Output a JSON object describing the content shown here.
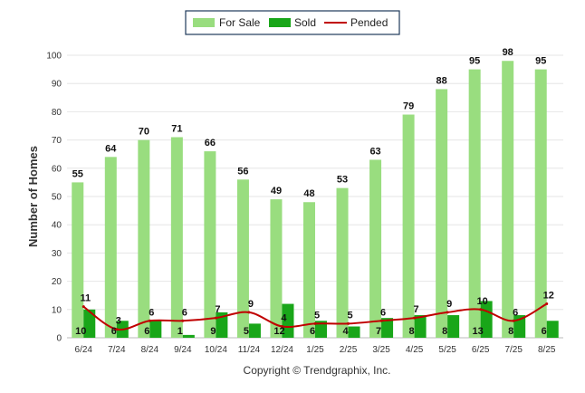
{
  "chart_data": {
    "type": "bar",
    "categories": [
      "6/24",
      "7/24",
      "8/24",
      "9/24",
      "10/24",
      "11/24",
      "12/24",
      "1/25",
      "2/25",
      "3/25",
      "4/25",
      "5/25",
      "6/25",
      "7/25",
      "8/25"
    ],
    "series": [
      {
        "name": "For Sale",
        "kind": "bar",
        "color": "#99dd7f",
        "values": [
          55,
          64,
          70,
          71,
          66,
          56,
          49,
          48,
          53,
          63,
          79,
          88,
          95,
          98,
          95
        ]
      },
      {
        "name": "Sold",
        "kind": "bar",
        "color": "#19a619",
        "values": [
          10,
          6,
          6,
          1,
          9,
          5,
          12,
          6,
          4,
          7,
          8,
          8,
          13,
          8,
          6
        ]
      },
      {
        "name": "Pended",
        "kind": "line",
        "color": "#c00000",
        "values": [
          11,
          3,
          6,
          6,
          7,
          9,
          4,
          5,
          5,
          6,
          7,
          9,
          10,
          6,
          12
        ]
      }
    ],
    "ylabel": "Number of Homes",
    "xlabel": "",
    "ylim": [
      0,
      100
    ],
    "yticks": [
      0,
      10,
      20,
      30,
      40,
      50,
      60,
      70,
      80,
      90,
      100
    ],
    "grid": true,
    "legend_position": "top-center"
  },
  "footer": {
    "copyright": "Copyright © Trendgraphix, Inc."
  }
}
